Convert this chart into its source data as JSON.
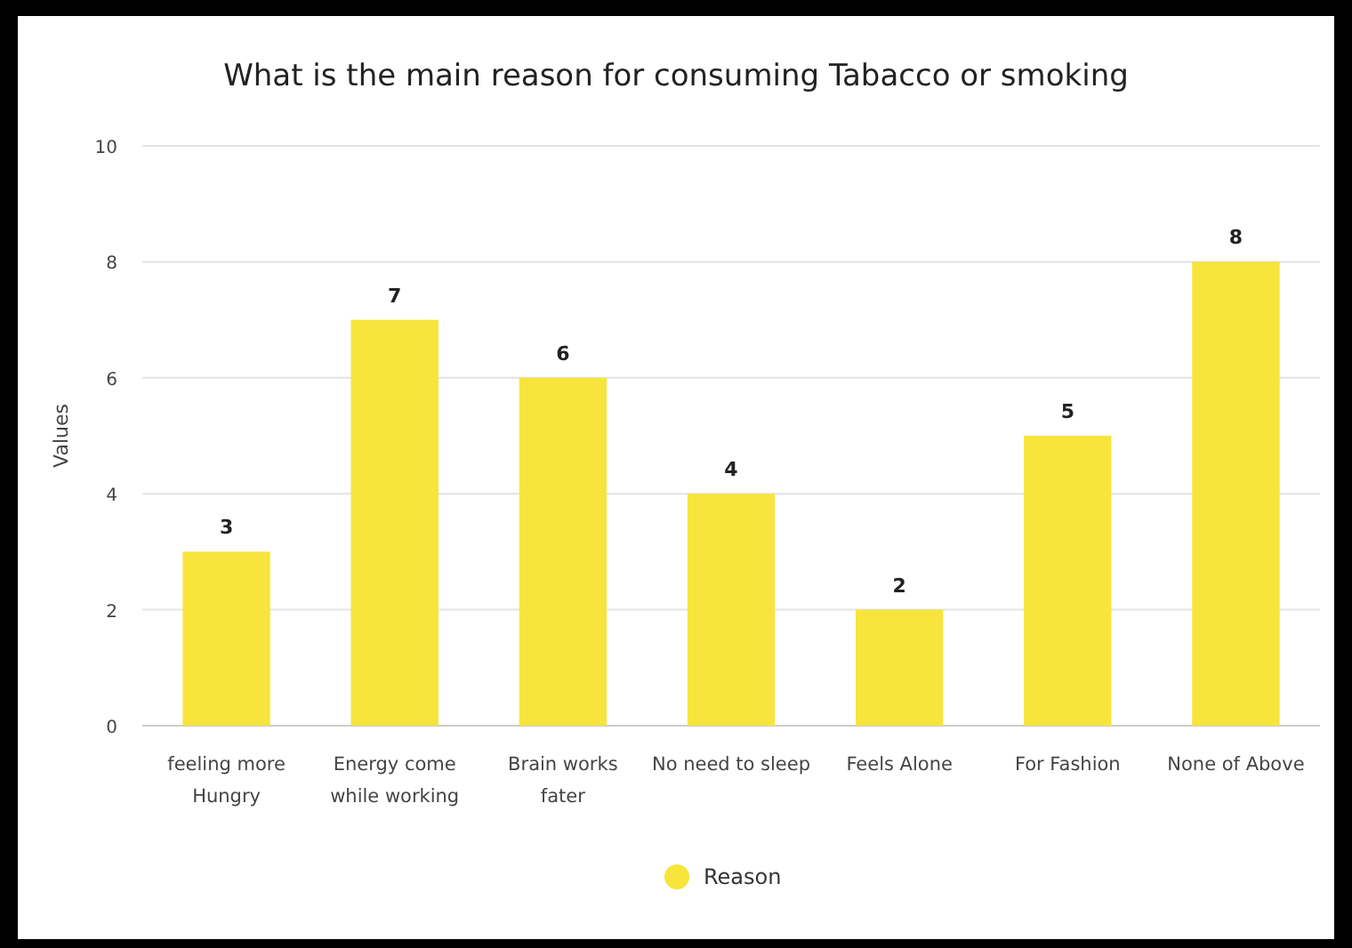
{
  "chart_data": {
    "type": "bar",
    "title": "What is the main reason for consuming Tabacco or smoking",
    "ylabel": "Values",
    "categories": [
      "feeling more Hungry",
      "Energy come while working",
      "Brain works fater",
      "No need to sleep",
      "Feels Alone",
      "For Fashion",
      "None of Above"
    ],
    "series": [
      {
        "name": "Reason",
        "color": "#f7e43c",
        "values": [
          3,
          7,
          6,
          4,
          2,
          5,
          8
        ]
      }
    ],
    "ylim": [
      0,
      10
    ],
    "yticks": [
      0,
      2,
      4,
      6,
      8,
      10
    ],
    "grid": "y",
    "legend": "bottom",
    "data_labels": true
  }
}
